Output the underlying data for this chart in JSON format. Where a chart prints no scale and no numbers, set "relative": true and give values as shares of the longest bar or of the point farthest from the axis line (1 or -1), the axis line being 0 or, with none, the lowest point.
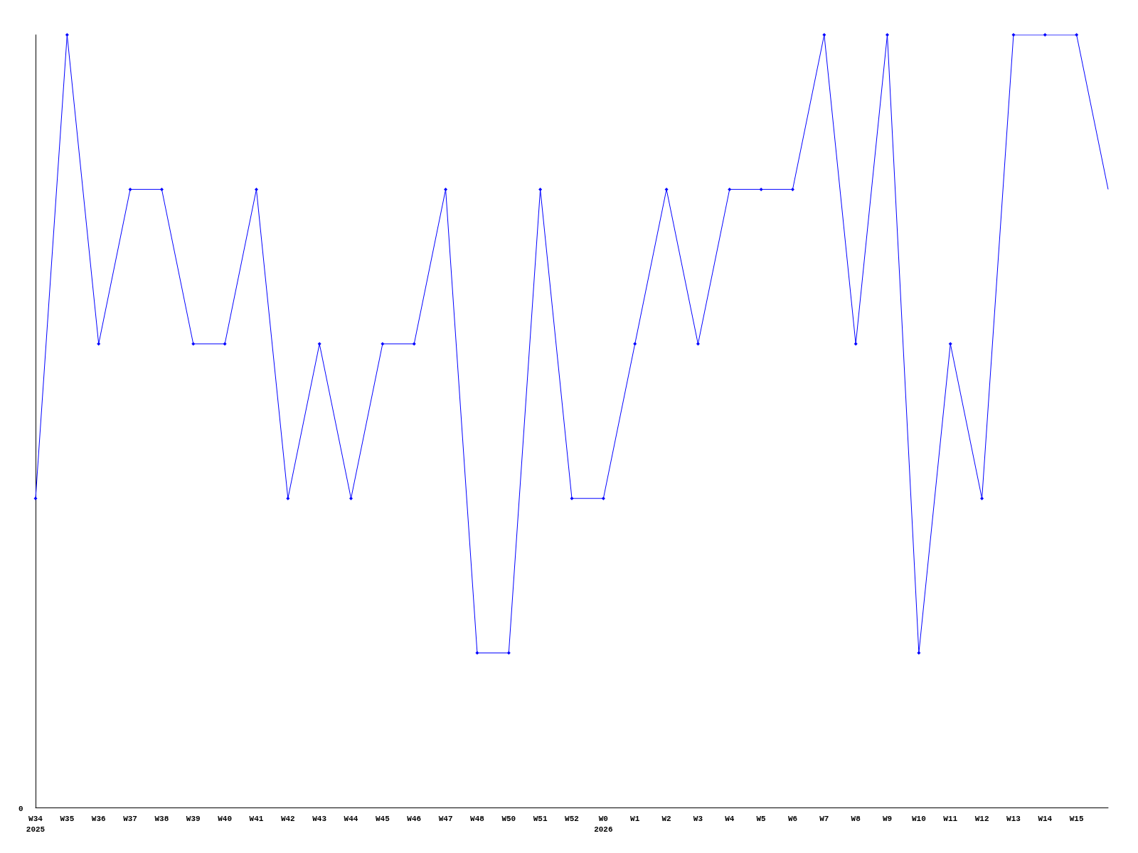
{
  "chart_data": {
    "type": "line",
    "relative": true,
    "categories": [
      "W34\n2025",
      "W35",
      "W36",
      "W37",
      "W38",
      "W39",
      "W40",
      "W41",
      "W42",
      "W43",
      "W44",
      "W45",
      "W46",
      "W47",
      "W48",
      "W50",
      "W51",
      "W52",
      "W0\n2026",
      "W1",
      "W2",
      "W3",
      "W4",
      "W5",
      "W6",
      "W7",
      "W8",
      "W9",
      "W10",
      "W11",
      "W12",
      "W13",
      "W14",
      "W15",
      null
    ],
    "series": [
      {
        "color": "#0000ff",
        "values": [
          0.4,
          1,
          0.6,
          0.8,
          0.8,
          0.6,
          0.6,
          0.8,
          0.4,
          0.6,
          0.4,
          0.6,
          0.6,
          0.8,
          0.2,
          0.2,
          0.8,
          0.4,
          0.4,
          0.6,
          0.8,
          0.6,
          0.8,
          0.8,
          0.8,
          1,
          0.6,
          1,
          0.2,
          0.6,
          0.4,
          1,
          1,
          1,
          0.8
        ]
      }
    ],
    "annotations": [
      "0"
    ],
    "marker": "diamond",
    "line_style": "solid",
    "grid": false
  }
}
